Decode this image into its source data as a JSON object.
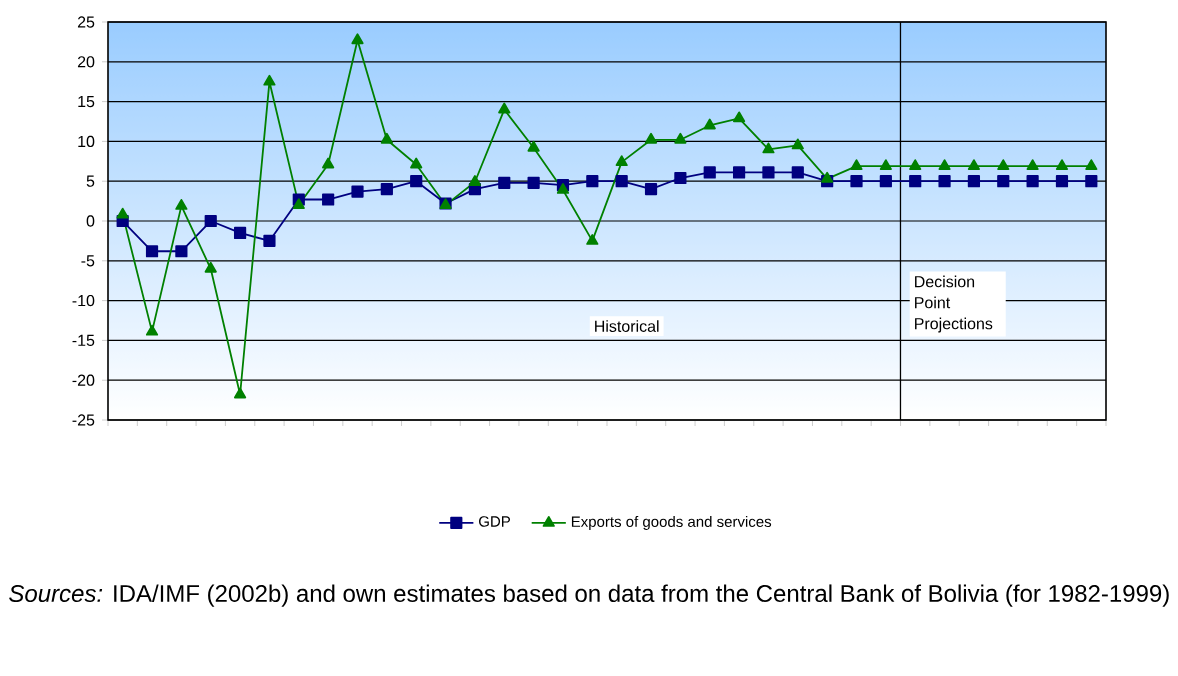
{
  "chart_data": {
    "type": "line",
    "categories": [
      null,
      null,
      null,
      null,
      null,
      null,
      null,
      null,
      null,
      null,
      null,
      null,
      null,
      null,
      null,
      null,
      null,
      null,
      null,
      null,
      null,
      null,
      null,
      null,
      null,
      null,
      null,
      null,
      null,
      null,
      null,
      null,
      null,
      null
    ],
    "series": [
      {
        "name": "GDP",
        "color": "#000080",
        "marker": "square",
        "values": [
          0,
          -3.8,
          -3.8,
          0,
          -1.5,
          -2.5,
          2.7,
          2.7,
          3.7,
          4.0,
          5.0,
          2.2,
          4.0,
          4.8,
          4.8,
          4.5,
          5.0,
          5.0,
          4.0,
          5.4,
          6.1,
          6.1,
          6.1,
          6.1,
          5.0,
          5.0,
          5.0,
          5.0,
          5.0,
          5.0,
          5.0,
          5.0,
          5.0,
          5.0
        ]
      },
      {
        "name": "Exports of goods and services",
        "color": "#008000",
        "marker": "triangle",
        "values": [
          0.8,
          -13.9,
          1.9,
          -6.0,
          -21.8,
          17.5,
          2.0,
          7.1,
          22.7,
          10.2,
          7.1,
          2.0,
          4.9,
          14.0,
          9.2,
          3.9,
          -2.5,
          7.4,
          10.2,
          10.2,
          12.0,
          12.9,
          9.0,
          9.5,
          5.3,
          6.9,
          6.9,
          6.9,
          6.9,
          6.9,
          6.9,
          6.9,
          6.9,
          6.9
        ]
      }
    ],
    "ylim": [
      -25,
      25
    ],
    "yticks": [
      -25,
      -20,
      -15,
      -10,
      -5,
      0,
      5,
      10,
      15,
      20,
      25
    ],
    "grid": "y",
    "legend": "bottom",
    "tick_labels": "y",
    "line_style": "solid",
    "annotations": [
      "Historical",
      "Decision Point Projections",
      "*Sources:* IDA/IMF (2002b) and own estimates based on data from the Central Bank of Bolivia (for 1982-1999)"
    ]
  }
}
